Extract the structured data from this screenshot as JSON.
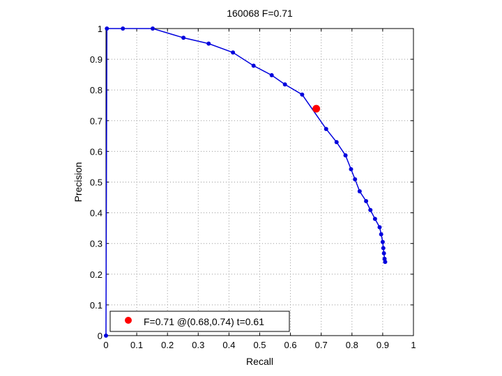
{
  "chart_data": {
    "type": "line",
    "title": "160068 F=0.71",
    "xlabel": "Recall",
    "ylabel": "Precision",
    "xlim": [
      0,
      1
    ],
    "ylim": [
      0,
      1
    ],
    "xticks": [
      0,
      0.1,
      0.2,
      0.3,
      0.4,
      0.5,
      0.6,
      0.7,
      0.8,
      0.9,
      1
    ],
    "yticks": [
      0,
      0.1,
      0.2,
      0.3,
      0.4,
      0.5,
      0.6,
      0.7,
      0.8,
      0.9,
      1
    ],
    "xtick_labels": [
      "0",
      "0.1",
      "0.2",
      "0.3",
      "0.4",
      "0.5",
      "0.6",
      "0.7",
      "0.8",
      "0.9",
      "1"
    ],
    "ytick_labels": [
      "0",
      "0.1",
      "0.2",
      "0.3",
      "0.4",
      "0.5",
      "0.6",
      "0.7",
      "0.8",
      "0.9",
      "1"
    ],
    "grid": true,
    "grid_style": "dotted",
    "series": [
      {
        "color": "#0000dd",
        "marker": "dot",
        "x": [
          0.0,
          0.003,
          0.055,
          0.152,
          0.252,
          0.334,
          0.413,
          0.48,
          0.539,
          0.582,
          0.638,
          0.716,
          0.75,
          0.779,
          0.797,
          0.81,
          0.825,
          0.846,
          0.86,
          0.875,
          0.89,
          0.895,
          0.9,
          0.902,
          0.904,
          0.906,
          0.908
        ],
        "y": [
          0.0,
          1.0,
          1.0,
          1.0,
          0.97,
          0.951,
          0.922,
          0.879,
          0.848,
          0.818,
          0.785,
          0.673,
          0.63,
          0.587,
          0.542,
          0.509,
          0.47,
          0.438,
          0.409,
          0.38,
          0.353,
          0.33,
          0.305,
          0.285,
          0.268,
          0.25,
          0.24
        ]
      }
    ],
    "highlight_point": {
      "x": 0.684,
      "y": 0.739,
      "color": "#ff0000"
    },
    "legend": {
      "placement": "bottom-left",
      "entries": [
        {
          "label": "F=0.71 @(0.68,0.74) t=0.61",
          "color": "#ff0000",
          "marker": "circle"
        }
      ]
    }
  }
}
